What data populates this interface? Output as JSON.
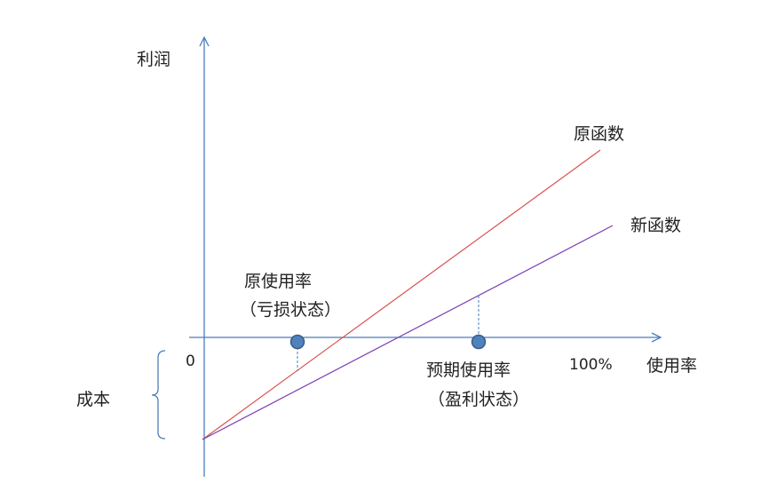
{
  "axes": {
    "y_label": "利润",
    "x_label": "使用率",
    "origin_label": "0",
    "x_max_label": "100%",
    "cost_label": "成本"
  },
  "lines": {
    "original_label": "原函数",
    "new_label": "新函数"
  },
  "points": {
    "original_usage_line1": "原使用率",
    "original_usage_line2": "（亏损状态）",
    "expected_usage_line1": "预期使用率",
    "expected_usage_line2": "（盈利状态）"
  },
  "colors": {
    "axis": "#4a7ebb",
    "original_line": "#d9534f",
    "new_line": "#7d3fb5",
    "point_fill": "#4f81bd",
    "point_stroke": "#385d8a"
  }
}
